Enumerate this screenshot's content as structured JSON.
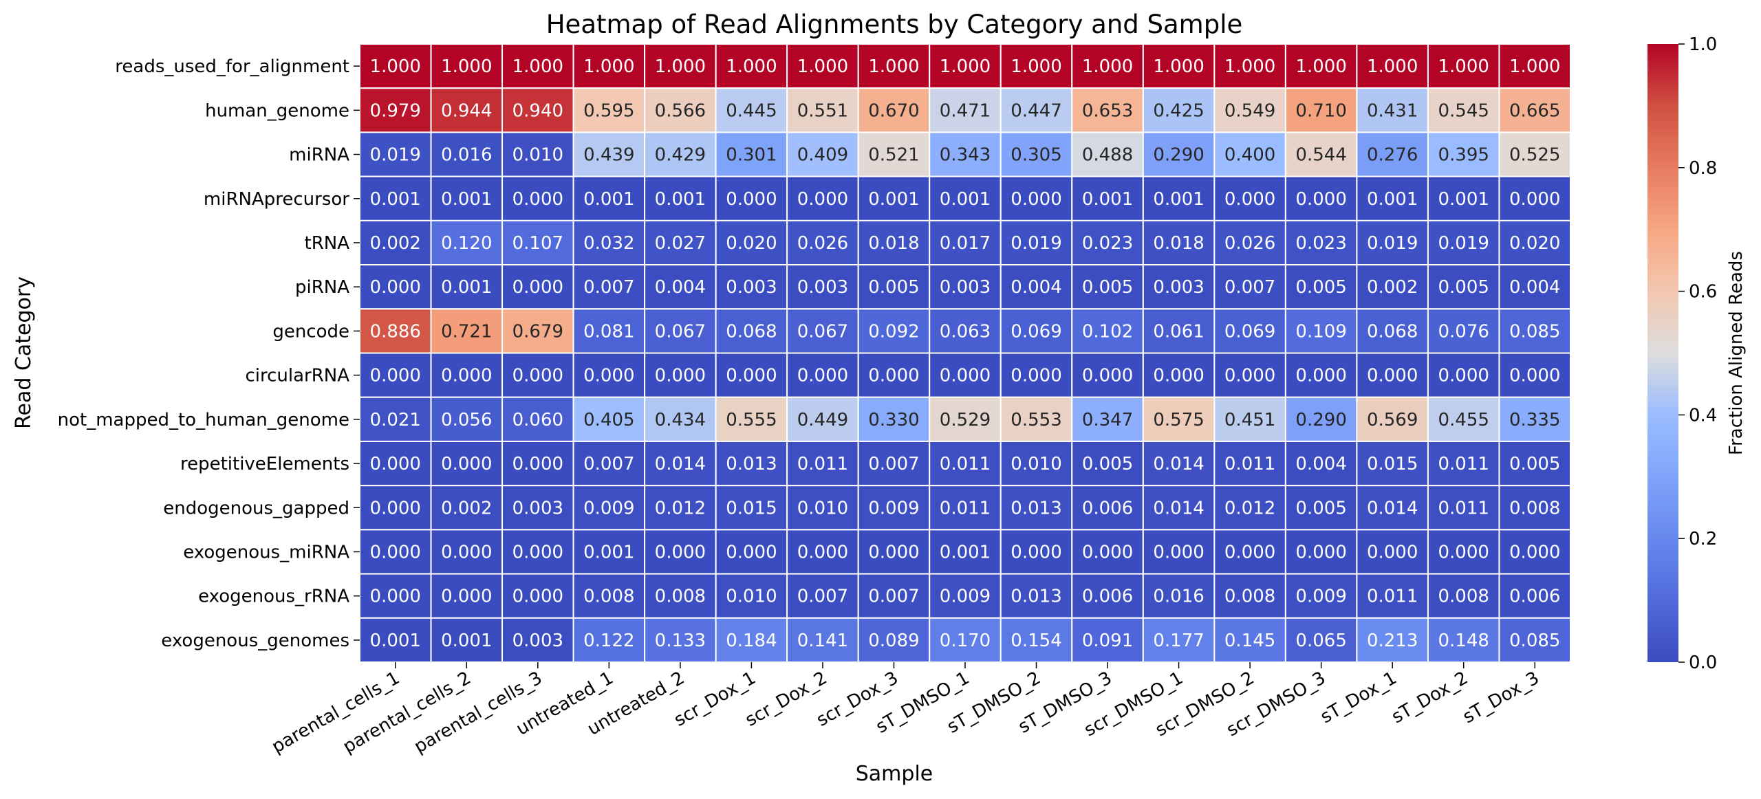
{
  "chart_data": {
    "type": "heatmap",
    "title": "Heatmap of Read Alignments by Category and Sample",
    "xlabel": "Sample",
    "ylabel": "Read Category",
    "colorbar_label": "Fraction Aligned Reads",
    "colormap": "coolwarm",
    "value_range": [
      0,
      1
    ],
    "colorbar_ticks": [
      "0.0",
      "0.2",
      "0.4",
      "0.6",
      "0.8",
      "1.0"
    ],
    "x_categories": [
      "parental_cells_1",
      "parental_cells_2",
      "parental_cells_3",
      "untreated_1",
      "untreated_2",
      "scr_Dox_1",
      "scr_Dox_2",
      "scr_Dox_3",
      "sT_DMSO_1",
      "sT_DMSO_2",
      "sT_DMSO_3",
      "scr_DMSO_1",
      "scr_DMSO_2",
      "scr_DMSO_3",
      "sT_Dox_1",
      "sT_Dox_2",
      "sT_Dox_3"
    ],
    "y_categories": [
      "reads_used_for_alignment",
      "human_genome",
      "miRNA",
      "miRNAprecursor",
      "tRNA",
      "piRNA",
      "gencode",
      "circularRNA",
      "not_mapped_to_human_genome",
      "repetitiveElements",
      "endogenous_gapped",
      "exogenous_miRNA",
      "exogenous_rRNA",
      "exogenous_genomes"
    ],
    "values": [
      [
        1.0,
        1.0,
        1.0,
        1.0,
        1.0,
        1.0,
        1.0,
        1.0,
        1.0,
        1.0,
        1.0,
        1.0,
        1.0,
        1.0,
        1.0,
        1.0,
        1.0
      ],
      [
        0.979,
        0.944,
        0.94,
        0.595,
        0.566,
        0.445,
        0.551,
        0.67,
        0.471,
        0.447,
        0.653,
        0.425,
        0.549,
        0.71,
        0.431,
        0.545,
        0.665
      ],
      [
        0.019,
        0.016,
        0.01,
        0.439,
        0.429,
        0.301,
        0.409,
        0.521,
        0.343,
        0.305,
        0.488,
        0.29,
        0.4,
        0.544,
        0.276,
        0.395,
        0.525
      ],
      [
        0.001,
        0.001,
        0.0,
        0.001,
        0.001,
        0.0,
        0.0,
        0.001,
        0.001,
        0.0,
        0.001,
        0.001,
        0.0,
        0.0,
        0.001,
        0.001,
        0.0
      ],
      [
        0.002,
        0.12,
        0.107,
        0.032,
        0.027,
        0.02,
        0.026,
        0.018,
        0.017,
        0.019,
        0.023,
        0.018,
        0.026,
        0.023,
        0.019,
        0.019,
        0.02
      ],
      [
        0.0,
        0.001,
        0.0,
        0.007,
        0.004,
        0.003,
        0.003,
        0.005,
        0.003,
        0.004,
        0.005,
        0.003,
        0.007,
        0.005,
        0.002,
        0.005,
        0.004
      ],
      [
        0.886,
        0.721,
        0.679,
        0.081,
        0.067,
        0.068,
        0.067,
        0.092,
        0.063,
        0.069,
        0.102,
        0.061,
        0.069,
        0.109,
        0.068,
        0.076,
        0.085
      ],
      [
        0.0,
        0.0,
        0.0,
        0.0,
        0.0,
        0.0,
        0.0,
        0.0,
        0.0,
        0.0,
        0.0,
        0.0,
        0.0,
        0.0,
        0.0,
        0.0,
        0.0
      ],
      [
        0.021,
        0.056,
        0.06,
        0.405,
        0.434,
        0.555,
        0.449,
        0.33,
        0.529,
        0.553,
        0.347,
        0.575,
        0.451,
        0.29,
        0.569,
        0.455,
        0.335
      ],
      [
        0.0,
        0.0,
        0.0,
        0.007,
        0.014,
        0.013,
        0.011,
        0.007,
        0.011,
        0.01,
        0.005,
        0.014,
        0.011,
        0.004,
        0.015,
        0.011,
        0.005
      ],
      [
        0.0,
        0.002,
        0.003,
        0.009,
        0.012,
        0.015,
        0.01,
        0.009,
        0.011,
        0.013,
        0.006,
        0.014,
        0.012,
        0.005,
        0.014,
        0.011,
        0.008
      ],
      [
        0.0,
        0.0,
        0.0,
        0.001,
        0.0,
        0.0,
        0.0,
        0.0,
        0.001,
        0.0,
        0.0,
        0.0,
        0.0,
        0.0,
        0.0,
        0.0,
        0.0
      ],
      [
        0.0,
        0.0,
        0.0,
        0.008,
        0.008,
        0.01,
        0.007,
        0.007,
        0.009,
        0.013,
        0.006,
        0.016,
        0.008,
        0.009,
        0.011,
        0.008,
        0.006
      ],
      [
        0.001,
        0.001,
        0.003,
        0.122,
        0.133,
        0.184,
        0.141,
        0.089,
        0.17,
        0.154,
        0.091,
        0.177,
        0.145,
        0.065,
        0.213,
        0.148,
        0.085
      ]
    ]
  }
}
